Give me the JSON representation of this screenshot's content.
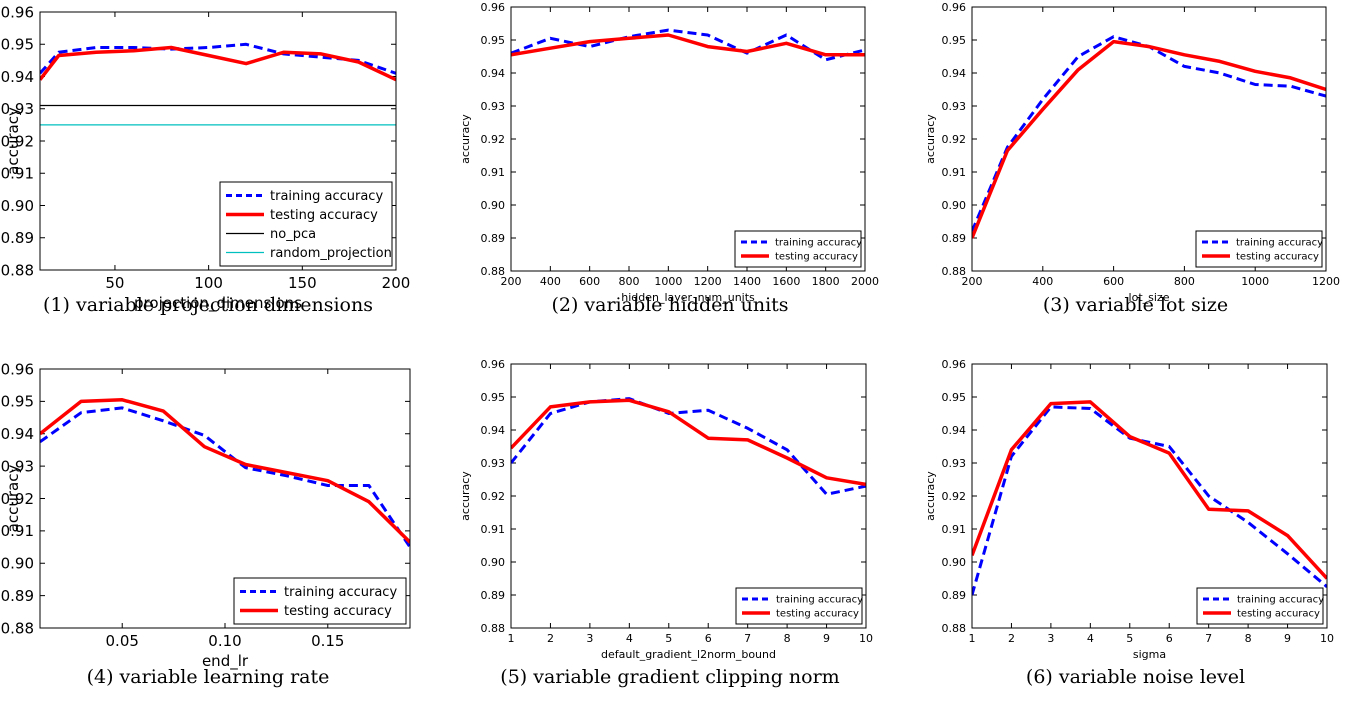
{
  "colors": {
    "training": "#0000ff",
    "testing": "#ff0000",
    "no_pca": "#000000",
    "random_projection": "#00bfbf"
  },
  "panels": [
    {
      "caption": "(1) variable projection dimensions",
      "chart_data": {
        "type": "line",
        "xlabel": "projection_dimensions",
        "ylabel": "accuracy",
        "xlim": [
          10,
          200
        ],
        "ylim": [
          0.88,
          0.96
        ],
        "xticks": [
          50,
          100,
          150,
          200
        ],
        "xtick_labels": [
          "50",
          "100",
          "150",
          "200"
        ],
        "yticks": [
          0.88,
          0.89,
          0.9,
          0.91,
          0.92,
          0.93,
          0.94,
          0.95,
          0.96
        ],
        "ytick_labels": [
          "0.88",
          "0.89",
          "0.90",
          "0.91",
          "0.92",
          "0.93",
          "0.94",
          "0.95",
          "0.96"
        ],
        "legend_position": "lower right",
        "series": [
          {
            "name": "training accuracy",
            "style": "dashed",
            "color": "#0000ff",
            "x": [
              10,
              20,
              40,
              60,
              80,
              100,
              120,
              140,
              160,
              180,
              200
            ],
            "y": [
              0.941,
              0.9475,
              0.949,
              0.949,
              0.9485,
              0.949,
              0.95,
              0.947,
              0.946,
              0.945,
              0.941
            ]
          },
          {
            "name": "testing accuracy",
            "style": "solid",
            "color": "#ff0000",
            "x": [
              10,
              20,
              40,
              60,
              80,
              100,
              120,
              140,
              160,
              180,
              200
            ],
            "y": [
              0.939,
              0.9465,
              0.9475,
              0.948,
              0.949,
              0.9465,
              0.944,
              0.9475,
              0.947,
              0.9445,
              0.939
            ]
          },
          {
            "name": "no_pca",
            "style": "hline",
            "color": "#000000",
            "y": 0.931
          },
          {
            "name": "random_projection",
            "style": "hline",
            "color": "#00bfbf",
            "y": 0.925
          }
        ]
      }
    },
    {
      "caption": "(2) variable hidden units",
      "chart_data": {
        "type": "line",
        "xlabel": "hidden_layer_num_units",
        "ylabel": "accuracy",
        "xlim": [
          200,
          2000
        ],
        "ylim": [
          0.88,
          0.96
        ],
        "xticks": [
          200,
          400,
          600,
          800,
          1000,
          1200,
          1400,
          1600,
          1800,
          2000
        ],
        "xtick_labels": [
          "200",
          "400",
          "600",
          "800",
          "1000",
          "1200",
          "1400",
          "1600",
          "1800",
          "2000"
        ],
        "yticks": [
          0.88,
          0.89,
          0.9,
          0.91,
          0.92,
          0.93,
          0.94,
          0.95,
          0.96
        ],
        "ytick_labels": [
          "0.88",
          "0.89",
          "0.90",
          "0.91",
          "0.92",
          "0.93",
          "0.94",
          "0.95",
          "0.96"
        ],
        "legend_position": "lower right",
        "series": [
          {
            "name": "training accuracy",
            "style": "dashed",
            "color": "#0000ff",
            "x": [
              200,
              400,
              600,
              800,
              1000,
              1200,
              1400,
              1600,
              1800,
              2000
            ],
            "y": [
              0.946,
              0.9505,
              0.948,
              0.951,
              0.953,
              0.9515,
              0.946,
              0.9515,
              0.944,
              0.947
            ]
          },
          {
            "name": "testing accuracy",
            "style": "solid",
            "color": "#ff0000",
            "x": [
              200,
              400,
              600,
              800,
              1000,
              1200,
              1400,
              1600,
              1800,
              2000
            ],
            "y": [
              0.9455,
              0.9475,
              0.9495,
              0.9505,
              0.9515,
              0.948,
              0.9465,
              0.949,
              0.9455,
              0.9455
            ]
          }
        ]
      }
    },
    {
      "caption": "(3) variable lot size",
      "chart_data": {
        "type": "line",
        "xlabel": "lot_size",
        "ylabel": "accuracy",
        "xlim": [
          200,
          1200
        ],
        "ylim": [
          0.88,
          0.96
        ],
        "xticks": [
          200,
          400,
          600,
          800,
          1000,
          1200
        ],
        "xtick_labels": [
          "200",
          "400",
          "600",
          "800",
          "1000",
          "1200"
        ],
        "yticks": [
          0.88,
          0.89,
          0.9,
          0.91,
          0.92,
          0.93,
          0.94,
          0.95,
          0.96
        ],
        "ytick_labels": [
          "0.88",
          "0.89",
          "0.90",
          "0.91",
          "0.92",
          "0.93",
          "0.94",
          "0.95",
          "0.96"
        ],
        "legend_position": "lower right",
        "series": [
          {
            "name": "training accuracy",
            "style": "dashed",
            "color": "#0000ff",
            "x": [
              200,
              300,
              400,
              500,
              600,
              700,
              800,
              900,
              1000,
              1100,
              1200
            ],
            "y": [
              0.892,
              0.9175,
              0.932,
              0.945,
              0.951,
              0.948,
              0.942,
              0.94,
              0.9365,
              0.936,
              0.933
            ]
          },
          {
            "name": "testing accuracy",
            "style": "solid",
            "color": "#ff0000",
            "x": [
              200,
              300,
              400,
              500,
              600,
              700,
              800,
              900,
              1000,
              1100,
              1200
            ],
            "y": [
              0.89,
              0.9165,
              0.929,
              0.941,
              0.9495,
              0.948,
              0.9455,
              0.9435,
              0.9405,
              0.9385,
              0.935
            ]
          }
        ]
      }
    },
    {
      "caption": "(4) variable learning rate",
      "chart_data": {
        "type": "line",
        "xlabel": "end_lr",
        "ylabel": "accuracy",
        "xlim": [
          0.01,
          0.19
        ],
        "ylim": [
          0.88,
          0.96
        ],
        "xticks": [
          0.05,
          0.1,
          0.15
        ],
        "xtick_labels": [
          "0.05",
          "0.10",
          "0.15"
        ],
        "yticks": [
          0.88,
          0.89,
          0.9,
          0.91,
          0.92,
          0.93,
          0.94,
          0.95,
          0.96
        ],
        "ytick_labels": [
          "0.88",
          "0.89",
          "0.90",
          "0.91",
          "0.92",
          "0.93",
          "0.94",
          "0.95",
          "0.96"
        ],
        "legend_position": "lower right",
        "series": [
          {
            "name": "training accuracy",
            "style": "dashed",
            "color": "#0000ff",
            "x": [
              0.01,
              0.03,
              0.05,
              0.07,
              0.09,
              0.11,
              0.13,
              0.15,
              0.17,
              0.19
            ],
            "y": [
              0.9375,
              0.9465,
              0.948,
              0.944,
              0.9395,
              0.9295,
              0.927,
              0.924,
              0.924,
              0.905
            ]
          },
          {
            "name": "testing accuracy",
            "style": "solid",
            "color": "#ff0000",
            "x": [
              0.01,
              0.03,
              0.05,
              0.07,
              0.09,
              0.11,
              0.13,
              0.15,
              0.17,
              0.19
            ],
            "y": [
              0.94,
              0.95,
              0.9505,
              0.947,
              0.936,
              0.9305,
              0.928,
              0.9255,
              0.919,
              0.9065
            ]
          }
        ]
      }
    },
    {
      "caption": "(5) variable gradient clipping norm",
      "chart_data": {
        "type": "line",
        "xlabel": "default_gradient_l2norm_bound",
        "ylabel": "accuracy",
        "xlim": [
          1,
          10
        ],
        "ylim": [
          0.88,
          0.96
        ],
        "xticks": [
          1,
          2,
          3,
          4,
          5,
          6,
          7,
          8,
          9,
          10
        ],
        "xtick_labels": [
          "1",
          "2",
          "3",
          "4",
          "5",
          "6",
          "7",
          "8",
          "9",
          "10"
        ],
        "yticks": [
          0.88,
          0.89,
          0.9,
          0.91,
          0.92,
          0.93,
          0.94,
          0.95,
          0.96
        ],
        "ytick_labels": [
          "0.88",
          "0.89",
          "0.90",
          "0.91",
          "0.92",
          "0.93",
          "0.94",
          "0.95",
          "0.96"
        ],
        "legend_position": "lower right",
        "series": [
          {
            "name": "training accuracy",
            "style": "dashed",
            "color": "#0000ff",
            "x": [
              1,
              2,
              3,
              4,
              5,
              6,
              7,
              8,
              9,
              10
            ],
            "y": [
              0.93,
              0.945,
              0.9485,
              0.9495,
              0.945,
              0.946,
              0.9405,
              0.934,
              0.9205,
              0.923
            ]
          },
          {
            "name": "testing accuracy",
            "style": "solid",
            "color": "#ff0000",
            "x": [
              1,
              2,
              3,
              4,
              5,
              6,
              7,
              8,
              9,
              10
            ],
            "y": [
              0.9345,
              0.947,
              0.9485,
              0.949,
              0.9455,
              0.9375,
              0.937,
              0.9315,
              0.9255,
              0.9235
            ]
          }
        ]
      }
    },
    {
      "caption": "(6) variable noise level",
      "chart_data": {
        "type": "line",
        "xlabel": "sigma",
        "ylabel": "accuracy",
        "xlim": [
          1,
          10
        ],
        "ylim": [
          0.88,
          0.96
        ],
        "xticks": [
          1,
          2,
          3,
          4,
          5,
          6,
          7,
          8,
          9,
          10
        ],
        "xtick_labels": [
          "1",
          "2",
          "3",
          "4",
          "5",
          "6",
          "7",
          "8",
          "9",
          "10"
        ],
        "yticks": [
          0.88,
          0.89,
          0.9,
          0.91,
          0.92,
          0.93,
          0.94,
          0.95,
          0.96
        ],
        "ytick_labels": [
          "0.88",
          "0.89",
          "0.90",
          "0.91",
          "0.92",
          "0.93",
          "0.94",
          "0.95",
          "0.96"
        ],
        "legend_position": "lower right",
        "series": [
          {
            "name": "training accuracy",
            "style": "dashed",
            "color": "#0000ff",
            "x": [
              1,
              2,
              3,
              4,
              5,
              6,
              7,
              8,
              9,
              10
            ],
            "y": [
              0.89,
              0.932,
              0.947,
              0.9465,
              0.9375,
              0.935,
              0.92,
              0.912,
              0.9025,
              0.8925
            ]
          },
          {
            "name": "testing accuracy",
            "style": "solid",
            "color": "#ff0000",
            "x": [
              1,
              2,
              3,
              4,
              5,
              6,
              7,
              8,
              9,
              10
            ],
            "y": [
              0.902,
              0.934,
              0.948,
              0.9485,
              0.938,
              0.933,
              0.916,
              0.9155,
              0.908,
              0.895
            ]
          }
        ]
      }
    }
  ]
}
